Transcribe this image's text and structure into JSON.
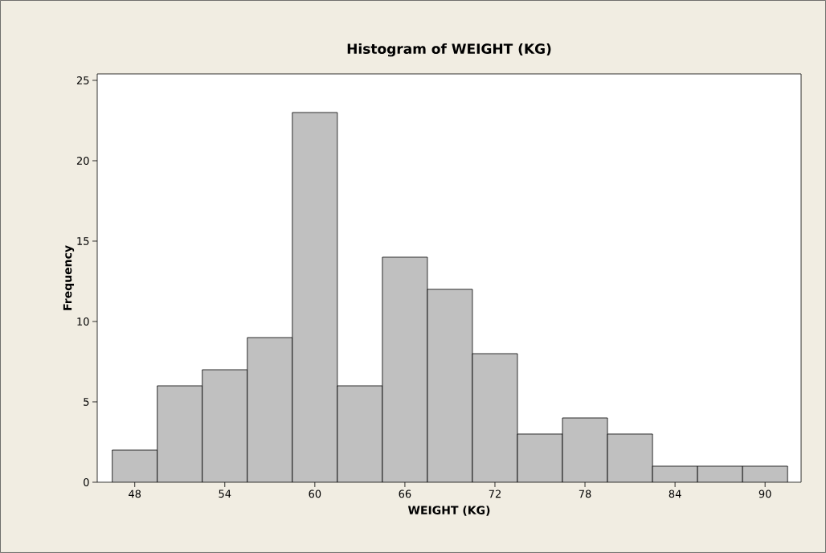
{
  "chart_data": {
    "type": "histogram",
    "title": "Histogram of WEIGHT (KG)",
    "xlabel": "WEIGHT (KG)",
    "ylabel": "Frequency",
    "bins": [
      46.5,
      49.5,
      52.5,
      55.5,
      58.5,
      61.5,
      64.5,
      67.5,
      70.5,
      73.5,
      76.5,
      79.5,
      82.5,
      85.5,
      88.5,
      91.5
    ],
    "values": [
      2,
      6,
      7,
      9,
      23,
      6,
      14,
      12,
      8,
      3,
      4,
      3,
      1,
      1,
      1
    ],
    "color": "#c0c0c0",
    "xlim": [
      45.5,
      92.4
    ],
    "ylim": [
      0,
      25.4
    ],
    "xticks": [
      48,
      54,
      60,
      66,
      72,
      78,
      84,
      90
    ],
    "yticks": [
      0,
      5,
      10,
      15,
      20,
      25
    ],
    "grid": false
  }
}
